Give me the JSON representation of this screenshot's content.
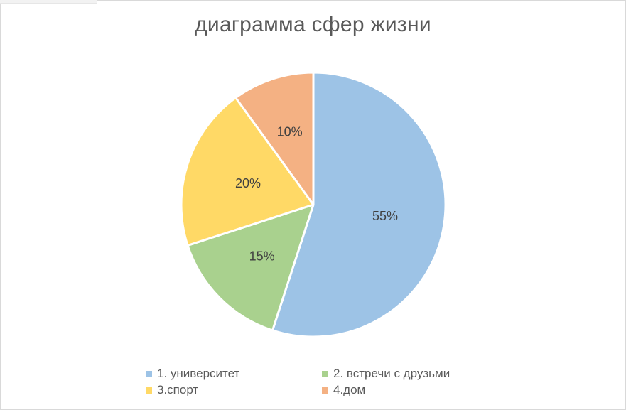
{
  "chart_data": {
    "type": "pie",
    "title": "диаграмма сфер жизни",
    "categories": [
      "1. университет",
      "2. встречи с друзьми",
      "3.спорт",
      "4.дом"
    ],
    "values": [
      55,
      15,
      20,
      10
    ],
    "data_labels": [
      "55%",
      "15%",
      "20%",
      "10%"
    ],
    "colors": [
      "#9dc3e6",
      "#a9d18e",
      "#ffd966",
      "#f4b183"
    ],
    "legend_position": "bottom"
  }
}
